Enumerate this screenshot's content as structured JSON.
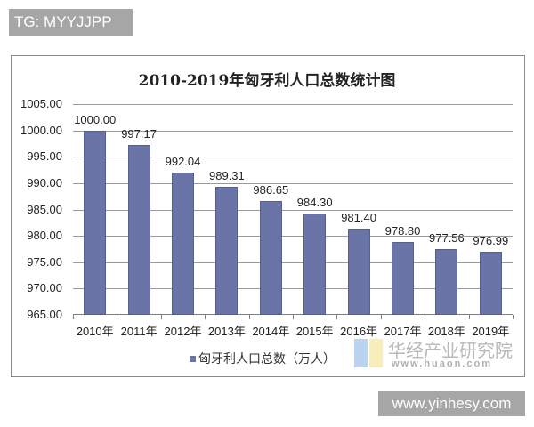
{
  "overlay": {
    "tg_badge": "TG: MYYJJPP",
    "site_badge": "www.yinhesy.com"
  },
  "watermark": {
    "name": "华经产业研究院",
    "url": "www.huaon.com"
  },
  "chart_data": {
    "type": "bar",
    "title": "2010-2019年匈牙利人口总数统计图",
    "xlabel": "",
    "ylabel": "",
    "categories": [
      "2010年",
      "2011年",
      "2012年",
      "2013年",
      "2014年",
      "2015年",
      "2016年",
      "2017年",
      "2018年",
      "2019年"
    ],
    "series": [
      {
        "name": "匈牙利人口总数（万人）",
        "color": "#6a74a6",
        "values": [
          1000.0,
          997.17,
          992.04,
          989.31,
          986.65,
          984.3,
          981.4,
          978.8,
          977.56,
          976.99
        ]
      }
    ],
    "value_labels": [
      "1000.00",
      "997.17",
      "992.04",
      "989.31",
      "986.65",
      "984.30",
      "981.40",
      "978.80",
      "977.56",
      "976.99"
    ],
    "yticks": [
      "1005.00",
      "1000.00",
      "995.00",
      "990.00",
      "985.00",
      "980.00",
      "975.00",
      "970.00",
      "965.00"
    ],
    "ylim": [
      965,
      1005
    ],
    "grid": true,
    "legend_position": "bottom",
    "legend": [
      "匈牙利人口总数（万人）"
    ]
  }
}
